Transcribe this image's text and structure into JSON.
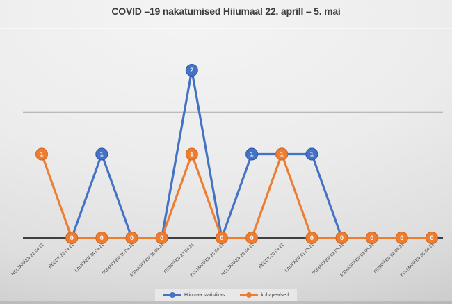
{
  "title": "COVID –19 nakatumised Hiiumaal 22. aprill – 5. mai",
  "colors": {
    "background_top": "#f4f4f4",
    "background_bottom": "#b5b5b5",
    "axis": "#3f3f3f",
    "gridline": "#aaaaaa",
    "tick_label": "#474747",
    "title_text": "#3d3d3d",
    "legend_background": "#e8e8e8",
    "legend_text": "#3f3f3f",
    "data_label_text": "#ffffff"
  },
  "chart_data": {
    "type": "line",
    "title": "COVID –19 nakatumised Hiiumaal 22. aprill – 5. mai",
    "categories": [
      "NELJAPÄEV 22.04.21",
      "REEDE 23.04.21",
      "LAUPÄEV 24.04.21",
      "PÜHAPÄEV 25.04.21",
      "ESMASPÄEV 26.04.21",
      "TEISIPÄEV 27.04.21",
      "KOLMAPÄEV 28.04.21",
      "NELJAPÄEV 29.04.21",
      "REEDE 30.04.21",
      "LAUPÄEV 01.05.21",
      "PÜHAPÄEV 02.05.21",
      "ESMASPÄEV 03.05.21",
      "TEISIPÄEV 04.05.21",
      "KOLMAPÄEV 05.04.21"
    ],
    "series": [
      {
        "name": "Hiiumaa statistikas",
        "color": "#4472C4",
        "marker_edge": "#2e57a6",
        "values": [
          null,
          0,
          1,
          0,
          0,
          2,
          0,
          1,
          1,
          1,
          0,
          0,
          0,
          0
        ]
      },
      {
        "name": "kohapealsed",
        "color": "#ED7D31",
        "marker_edge": "#d3671f",
        "values": [
          1,
          0,
          0,
          0,
          0,
          1,
          0,
          0,
          1,
          0,
          0,
          0,
          0,
          0
        ]
      }
    ],
    "ylim": [
      0,
      2.4
    ],
    "gridline_values": [
      1,
      1.5
    ],
    "data_labels": true,
    "legend_position": "bottom",
    "x_tick_rotation": -45,
    "grid": "horizontal-only"
  }
}
